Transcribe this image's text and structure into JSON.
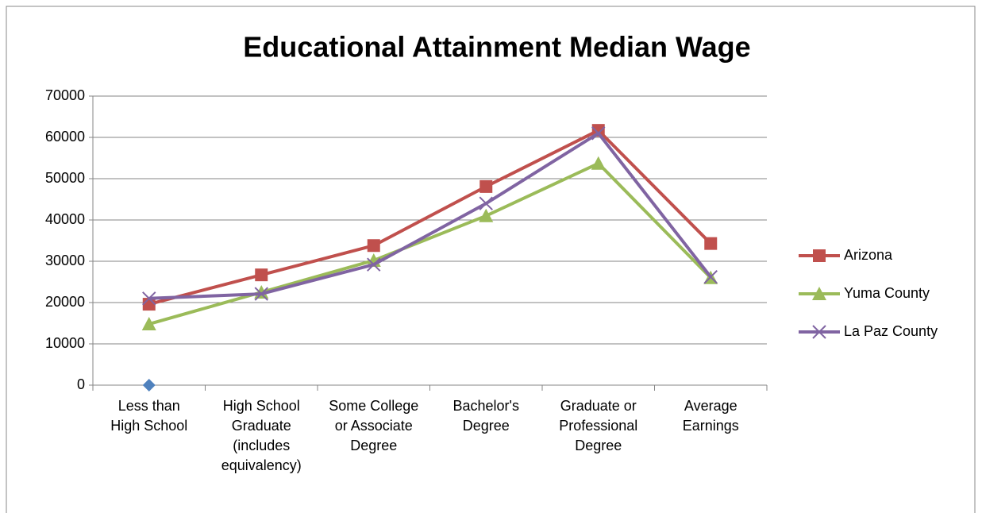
{
  "chart_data": {
    "type": "line",
    "title": "Educational Attainment Median Wage",
    "categories": [
      "Less than High School",
      "High School Graduate (includes equivalency)",
      "Some College or Associate Degree",
      "Bachelor's Degree",
      "Graduate or Professional Degree",
      "Average Earnings"
    ],
    "series": [
      {
        "name": "Arizona",
        "color": "#c0504d",
        "marker": "square",
        "values": [
          19600,
          26700,
          33800,
          48100,
          61700,
          34300
        ]
      },
      {
        "name": "Yuma County",
        "color": "#9bbb59",
        "marker": "triangle",
        "values": [
          14800,
          22500,
          30200,
          41000,
          53700,
          26000
        ]
      },
      {
        "name": "La Paz County",
        "color": "#8064a2",
        "marker": "x",
        "values": [
          21000,
          22100,
          29200,
          44000,
          61000,
          26200
        ]
      },
      {
        "color": "#4f81bd",
        "marker": "diamond",
        "values": [
          0,
          null,
          null,
          null,
          null,
          null
        ]
      }
    ],
    "ylim": [
      0,
      70000
    ],
    "yticks": [
      0,
      10000,
      20000,
      30000,
      40000,
      50000,
      60000,
      70000
    ],
    "grid": true,
    "legend": "right"
  }
}
